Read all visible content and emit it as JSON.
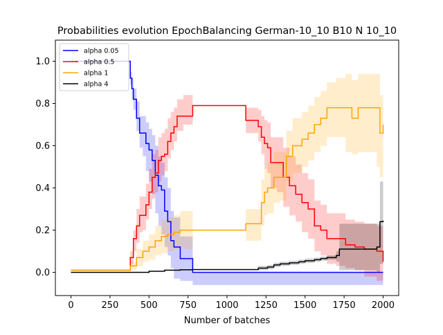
{
  "chart_data": {
    "type": "line",
    "title": "Probabilities evolution EpochBalancing German-10_10 B10 N 10_10",
    "xlabel": "Number of batches",
    "ylabel": "",
    "xlim": [
      -100,
      2100
    ],
    "ylim": [
      -0.11,
      1.1
    ],
    "xticks": [
      0,
      250,
      500,
      750,
      1000,
      1250,
      1500,
      1750,
      2000
    ],
    "yticks": [
      0.0,
      0.2,
      0.4,
      0.6,
      0.8,
      1.0
    ],
    "xtick_labels": [
      "0",
      "250",
      "500",
      "750",
      "1000",
      "1250",
      "1500",
      "1750",
      "2000"
    ],
    "ytick_labels": [
      "0.0",
      "0.2",
      "0.4",
      "0.6",
      "0.8",
      "1.0"
    ],
    "grid": false,
    "legend_position": "top-left",
    "series": [
      {
        "name": "alpha 0.05",
        "color": "#0000ff",
        "x": [
          0,
          370,
          380,
          390,
          400,
          420,
          440,
          460,
          480,
          500,
          520,
          540,
          560,
          580,
          600,
          620,
          640,
          660,
          700,
          780,
          2000
        ],
        "y": [
          1.0,
          1.0,
          0.92,
          0.87,
          0.82,
          0.73,
          0.66,
          0.66,
          0.61,
          0.58,
          0.53,
          0.46,
          0.41,
          0.39,
          0.29,
          0.24,
          0.15,
          0.12,
          0.065,
          0.0,
          0.0
        ],
        "lower": [
          1.0,
          1.0,
          0.89,
          0.82,
          0.77,
          0.67,
          0.59,
          0.55,
          0.48,
          0.43,
          0.37,
          0.28,
          0.22,
          0.18,
          0.12,
          0.08,
          0.02,
          -0.03,
          -0.04,
          -0.06,
          0.0
        ],
        "upper": [
          1.0,
          1.0,
          0.95,
          0.92,
          0.87,
          0.81,
          0.74,
          0.74,
          0.71,
          0.68,
          0.65,
          0.6,
          0.55,
          0.52,
          0.45,
          0.4,
          0.29,
          0.26,
          0.17,
          0.0,
          0.0
        ]
      },
      {
        "name": "alpha 0.5",
        "color": "#ff0000",
        "x": [
          0,
          370,
          380,
          400,
          420,
          440,
          460,
          480,
          500,
          520,
          540,
          560,
          580,
          600,
          620,
          640,
          660,
          680,
          720,
          780,
          1100,
          1120,
          1200,
          1220,
          1240,
          1260,
          1280,
          1320,
          1360,
          1400,
          1440,
          1480,
          1520,
          1560,
          1600,
          1640,
          1700,
          1760,
          1820,
          1880,
          1960,
          2000
        ],
        "y": [
          0.01,
          0.01,
          0.07,
          0.16,
          0.22,
          0.27,
          0.27,
          0.32,
          0.38,
          0.45,
          0.47,
          0.53,
          0.55,
          0.56,
          0.62,
          0.66,
          0.69,
          0.74,
          0.74,
          0.79,
          0.79,
          0.72,
          0.69,
          0.64,
          0.61,
          0.59,
          0.52,
          0.52,
          0.45,
          0.41,
          0.37,
          0.33,
          0.3,
          0.22,
          0.2,
          0.16,
          0.16,
          0.13,
          0.12,
          0.11,
          0.1,
          0.05
        ],
        "lower": [
          0.01,
          0.01,
          0.04,
          0.1,
          0.14,
          0.19,
          0.2,
          0.25,
          0.3,
          0.35,
          0.38,
          0.43,
          0.46,
          0.48,
          0.54,
          0.58,
          0.62,
          0.67,
          0.7,
          0.79,
          0.79,
          0.66,
          0.62,
          0.56,
          0.49,
          0.47,
          0.4,
          0.38,
          0.31,
          0.27,
          0.24,
          0.19,
          0.16,
          0.1,
          0.08,
          0.04,
          0.03,
          0.02,
          0.01,
          -0.02,
          -0.04,
          -0.04
        ],
        "upper": [
          0.01,
          0.01,
          0.1,
          0.2,
          0.3,
          0.36,
          0.36,
          0.42,
          0.49,
          0.56,
          0.58,
          0.64,
          0.66,
          0.68,
          0.73,
          0.76,
          0.78,
          0.82,
          0.84,
          0.79,
          0.79,
          0.78,
          0.77,
          0.74,
          0.72,
          0.71,
          0.64,
          0.64,
          0.59,
          0.55,
          0.51,
          0.47,
          0.44,
          0.34,
          0.32,
          0.28,
          0.28,
          0.25,
          0.24,
          0.23,
          0.22,
          0.16
        ]
      },
      {
        "name": "alpha 1",
        "color": "#ffa500",
        "x": [
          0,
          370,
          380,
          420,
          460,
          500,
          540,
          580,
          620,
          660,
          700,
          780,
          1100,
          1120,
          1220,
          1240,
          1260,
          1300,
          1340,
          1380,
          1420,
          1480,
          1520,
          1560,
          1600,
          1640,
          1700,
          1760,
          1800,
          1840,
          1880,
          1960,
          1980,
          2000
        ],
        "y": [
          0.01,
          0.01,
          0.03,
          0.07,
          0.1,
          0.12,
          0.15,
          0.17,
          0.18,
          0.19,
          0.2,
          0.2,
          0.2,
          0.23,
          0.33,
          0.38,
          0.4,
          0.45,
          0.45,
          0.55,
          0.6,
          0.63,
          0.66,
          0.7,
          0.73,
          0.78,
          0.78,
          0.78,
          0.73,
          0.78,
          0.78,
          0.78,
          0.66,
          0.7
        ],
        "lower": [
          0.01,
          0.01,
          0.01,
          0.03,
          0.05,
          0.06,
          0.08,
          0.09,
          0.1,
          0.11,
          0.11,
          0.2,
          0.2,
          0.15,
          0.22,
          0.27,
          0.28,
          0.33,
          0.34,
          0.43,
          0.47,
          0.5,
          0.53,
          0.57,
          0.6,
          0.64,
          0.64,
          0.57,
          0.56,
          0.57,
          0.57,
          0.5,
          0.45,
          0.5
        ],
        "upper": [
          0.01,
          0.01,
          0.05,
          0.11,
          0.15,
          0.18,
          0.22,
          0.25,
          0.26,
          0.27,
          0.29,
          0.2,
          0.2,
          0.3,
          0.44,
          0.49,
          0.52,
          0.57,
          0.57,
          0.67,
          0.73,
          0.76,
          0.79,
          0.83,
          0.86,
          0.9,
          0.92,
          0.94,
          0.91,
          0.94,
          0.94,
          0.94,
          0.84,
          0.88
        ]
      },
      {
        "name": "alpha 4",
        "color": "#000000",
        "x": [
          0,
          370,
          500,
          600,
          700,
          780,
          1100,
          1200,
          1260,
          1300,
          1340,
          1400,
          1460,
          1500,
          1560,
          1600,
          1640,
          1700,
          1720,
          1960,
          1980,
          2000
        ],
        "y": [
          0.0,
          0.0,
          0.005,
          0.01,
          0.012,
          0.013,
          0.013,
          0.02,
          0.025,
          0.035,
          0.04,
          0.045,
          0.05,
          0.055,
          0.06,
          0.065,
          0.07,
          0.08,
          0.11,
          0.12,
          0.24,
          0.245
        ],
        "lower": [
          0.0,
          0.0,
          0.004,
          0.008,
          0.01,
          0.012,
          0.012,
          0.01,
          0.015,
          0.025,
          0.03,
          0.035,
          0.04,
          0.045,
          0.05,
          0.055,
          0.06,
          0.05,
          0.01,
          0.0,
          0.04,
          0.05
        ],
        "upper": [
          0.0,
          0.0,
          0.006,
          0.012,
          0.014,
          0.014,
          0.014,
          0.03,
          0.035,
          0.045,
          0.05,
          0.055,
          0.06,
          0.065,
          0.07,
          0.075,
          0.08,
          0.1,
          0.23,
          0.23,
          0.43,
          0.43
        ]
      }
    ]
  }
}
